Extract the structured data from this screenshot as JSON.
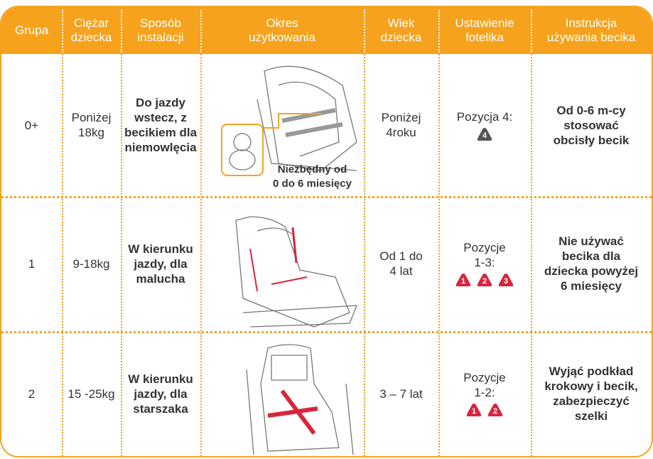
{
  "table": {
    "header": [
      "Grupa",
      "Ciężar\ndziecka",
      "Sposób\ninstalacji",
      "Okres\nużytkowania",
      "Wiek\ndziecka",
      "Ustawienie\nfotelika",
      "Instrukcja\nużywania becika"
    ],
    "rows": [
      {
        "group": "0+",
        "weight": "Poniżej\n18kg",
        "installation": "Do jazdy\nwstecz, z\nbecikiem dla\nniemowlęcia",
        "note": "Niezbędny od\n0 do 6 miesięcy",
        "age": "Poniżej\n4roku",
        "position": "Pozycja 4:",
        "badges": [
          "4"
        ],
        "instruction": "Od 0-6 m-cy\nstosować\nobcisły becik"
      },
      {
        "group": "1",
        "weight": "9-18kg",
        "installation": "W kierunku\njazdy, dla\nmalucha",
        "age": "Od 1 do\n4 lat",
        "position": "Pozycje\n1-3:",
        "badges": [
          "1",
          "2",
          "3"
        ],
        "instruction": "Nie używać\nbecika dla\ndziecka powyżej\n6 miesięcy"
      },
      {
        "group": "2",
        "weight": "15 -25kg",
        "installation": "W kierunku\njazdy, dla\nstarszaka",
        "age": "3 – 7 lat",
        "position": "Pozycje\n1-2:",
        "badges": [
          "1",
          "2"
        ],
        "instruction": "Wyjąć podkład\nkrokowy i becik,\nzabezpieczyć\nszelki"
      }
    ]
  }
}
